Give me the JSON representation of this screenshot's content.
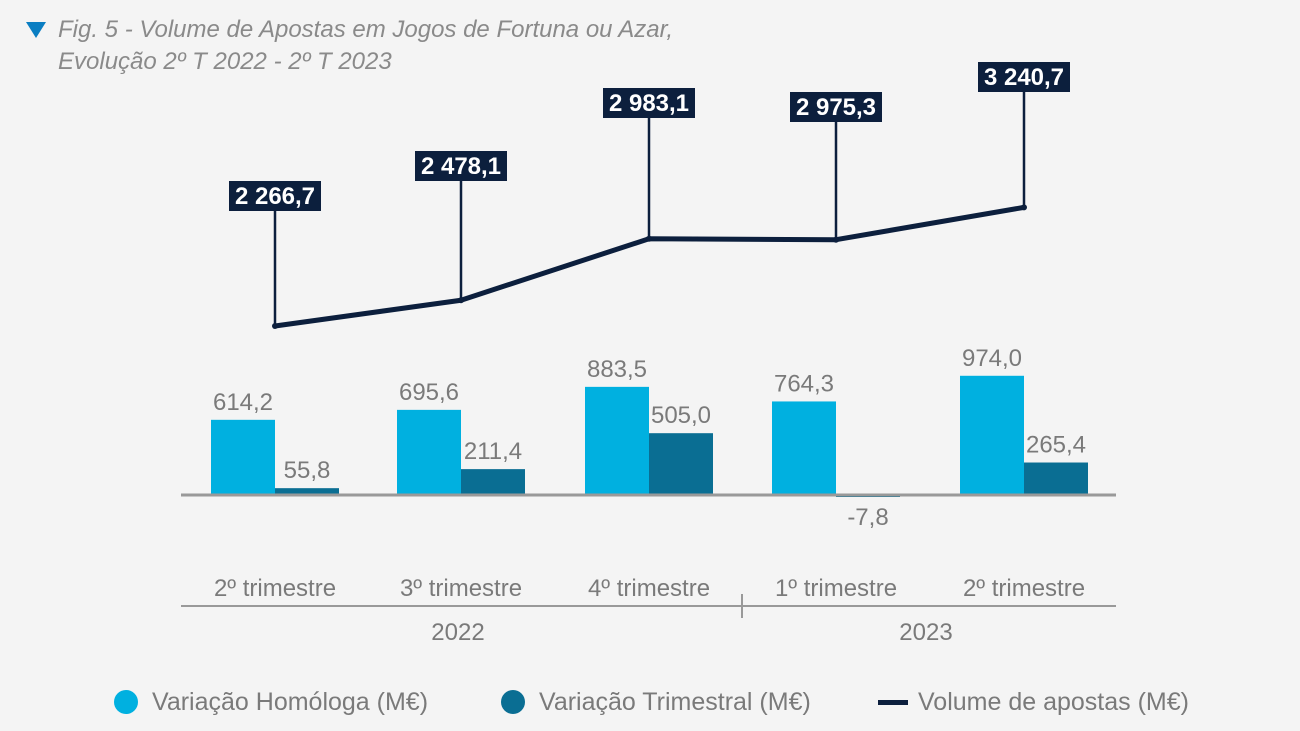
{
  "title": {
    "line1": "Fig. 5 - Volume de Apostas em Jogos de Fortuna ou Azar,",
    "line2": "Evolução 2º T 2022 - 2º T 2023"
  },
  "colors": {
    "homologa": "#00b0e0",
    "trimestral": "#0a6e93",
    "volume": "#0c1f3d",
    "label_box": "#0c1f3d",
    "axis": "#999999",
    "text": "#7a7a7a",
    "marker": "#0a7ec2"
  },
  "chart_data": {
    "type": "bar",
    "categories": [
      "2º trimestre",
      "3º trimestre",
      "4º trimestre",
      "1º trimestre",
      "2º trimestre"
    ],
    "year_groups": [
      {
        "label": "2022",
        "categories": [
          "2º trimestre",
          "3º trimestre",
          "4º trimestre"
        ]
      },
      {
        "label": "2023",
        "categories": [
          "1º trimestre",
          "2º trimestre"
        ]
      }
    ],
    "series": [
      {
        "name": "Variação Homóloga (M€)",
        "type": "bar",
        "values": [
          614.2,
          695.6,
          883.5,
          764.3,
          974.0
        ],
        "labels": [
          "614,2",
          "695,6",
          "883,5",
          "764,3",
          "974,0"
        ]
      },
      {
        "name": "Variação Trimestral (M€)",
        "type": "bar",
        "values": [
          55.8,
          211.4,
          505.0,
          -7.8,
          265.4
        ],
        "labels": [
          "55,8",
          "211,4",
          "505,0",
          "-7,8",
          "265,4"
        ]
      },
      {
        "name": "Volume de apostas (M€)",
        "type": "line",
        "values": [
          2266.7,
          2478.1,
          2983.1,
          2975.3,
          3240.7
        ],
        "labels": [
          "2 266,7",
          "2 478,1",
          "2 983,1",
          "2 975,3",
          "3 240,7"
        ]
      }
    ],
    "legend_position": "bottom",
    "grid": false
  }
}
